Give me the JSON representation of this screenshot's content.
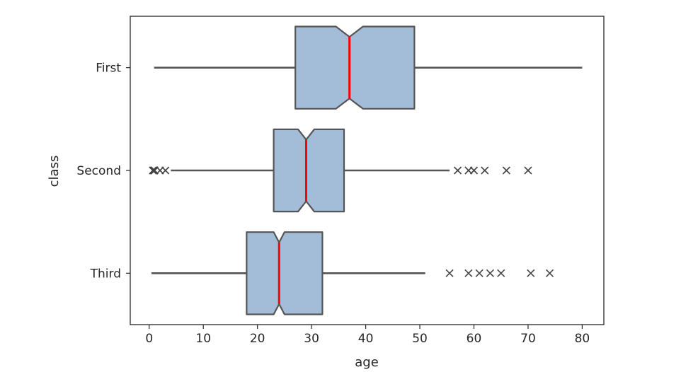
{
  "chart_data": {
    "type": "boxplot",
    "orientation": "horizontal",
    "notched": true,
    "xlabel": "age",
    "ylabel": "class",
    "xlim": [
      -3.5,
      84
    ],
    "xticks": [
      0,
      10,
      20,
      30,
      40,
      50,
      60,
      70,
      80
    ],
    "categories": [
      "First",
      "Second",
      "Third"
    ],
    "box_color": "#a3bdd9",
    "edge_color": "#555555",
    "median_color": "#ff0000",
    "outlier_marker": "x",
    "boxes": [
      {
        "category": "First",
        "whislo": 0.9,
        "q1": 27,
        "notch_lo": 34.5,
        "med": 37,
        "notch_hi": 39.5,
        "q3": 49,
        "whishi": 80,
        "fliers": []
      },
      {
        "category": "Second",
        "whislo": 4,
        "q1": 23,
        "notch_lo": 27.5,
        "med": 29,
        "notch_hi": 30.5,
        "q3": 36,
        "whishi": 55.5,
        "fliers": [
          0.67,
          0.83,
          0.92,
          1,
          2,
          3,
          57,
          59,
          60,
          62,
          66,
          70
        ]
      },
      {
        "category": "Third",
        "whislo": 0.42,
        "q1": 18,
        "notch_lo": 23,
        "med": 24,
        "notch_hi": 25,
        "q3": 32,
        "whishi": 51,
        "fliers": [
          55.5,
          59,
          61,
          63,
          65,
          70.5,
          74
        ]
      }
    ]
  }
}
